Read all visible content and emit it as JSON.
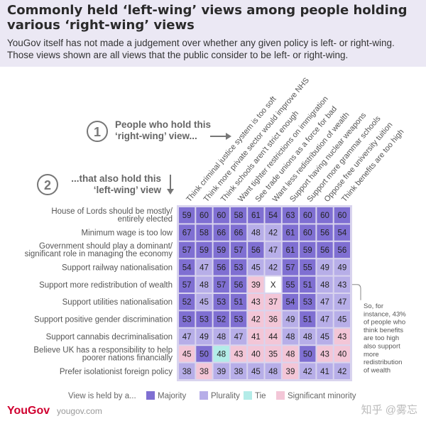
{
  "header": {
    "title": "Commonly held ‘left-wing’ views among people holding various ‘right-wing’ views",
    "subtitle": "YouGov itself has not made a judgement over whether any given policy is left- or right-wing. Those views shown are all views that the public consider to be left- or right-wing."
  },
  "chart_data": {
    "type": "heatmap",
    "step1_number": "1",
    "step1_lines": [
      "People who hold this",
      "‘right-wing’ view..."
    ],
    "step2_number": "2",
    "step2_lines": [
      "...that also hold this",
      "‘left-wing’ view"
    ],
    "columns": [
      "Think criminal justice system is too soft",
      "Think more private sector would improve NHS",
      "Think schools aren't strict enough",
      "Want tighter restrictions on immigration",
      "See trade unions as a force for bad",
      "Want less redistribution of wealth",
      "Support having nuclear weapons",
      "Support more grammar schools",
      "Oppose free university tuition",
      "Think benefits are too high"
    ],
    "rows": [
      {
        "label": [
          "House of Lords should be mostly/",
          "entirely elected"
        ],
        "values": [
          "59",
          "60",
          "60",
          "58",
          "61",
          "54",
          "63",
          "60",
          "60",
          "60"
        ],
        "cats": [
          "M",
          "M",
          "M",
          "M",
          "M",
          "M",
          "M",
          "M",
          "M",
          "M"
        ]
      },
      {
        "label": [
          "Minimum wage is too low"
        ],
        "values": [
          "67",
          "58",
          "66",
          "66",
          "48",
          "42",
          "61",
          "60",
          "56",
          "54"
        ],
        "cats": [
          "M",
          "M",
          "M",
          "M",
          "P",
          "P",
          "M",
          "M",
          "M",
          "M"
        ]
      },
      {
        "label": [
          "Government should play a dominant/",
          "significant role in managing the economy"
        ],
        "values": [
          "57",
          "59",
          "59",
          "57",
          "56",
          "47",
          "61",
          "59",
          "56",
          "56"
        ],
        "cats": [
          "M",
          "M",
          "M",
          "M",
          "M",
          "P",
          "M",
          "M",
          "M",
          "M"
        ]
      },
      {
        "label": [
          "Support railway nationalisation"
        ],
        "values": [
          "54",
          "47",
          "56",
          "53",
          "45",
          "42",
          "57",
          "55",
          "49",
          "49"
        ],
        "cats": [
          "M",
          "P",
          "M",
          "M",
          "P",
          "P",
          "M",
          "M",
          "P",
          "P"
        ]
      },
      {
        "label": [
          "Support more redistribution of wealth"
        ],
        "values": [
          "57",
          "48",
          "57",
          "56",
          "39",
          "X",
          "55",
          "51",
          "48",
          "43"
        ],
        "cats": [
          "M",
          "P",
          "M",
          "M",
          "S",
          "X",
          "M",
          "M",
          "P",
          "P"
        ]
      },
      {
        "label": [
          "Support utilities nationalisation"
        ],
        "values": [
          "52",
          "45",
          "53",
          "51",
          "43",
          "37",
          "54",
          "53",
          "47",
          "47"
        ],
        "cats": [
          "M",
          "P",
          "M",
          "M",
          "S",
          "S",
          "M",
          "M",
          "P",
          "P"
        ]
      },
      {
        "label": [
          "Support positive gender discrimination"
        ],
        "values": [
          "53",
          "53",
          "52",
          "53",
          "42",
          "36",
          "49",
          "51",
          "47",
          "45"
        ],
        "cats": [
          "M",
          "M",
          "M",
          "M",
          "S",
          "S",
          "P",
          "M",
          "P",
          "P"
        ]
      },
      {
        "label": [
          "Support cannabis decriminalisation"
        ],
        "values": [
          "47",
          "49",
          "48",
          "47",
          "41",
          "44",
          "48",
          "48",
          "45",
          "43"
        ],
        "cats": [
          "P",
          "P",
          "P",
          "P",
          "S",
          "S",
          "P",
          "P",
          "P",
          "S"
        ]
      },
      {
        "label": [
          "Believe UK has a responsibility to help",
          "poorer nations financially"
        ],
        "values": [
          "45",
          "50",
          "48",
          "43",
          "40",
          "35",
          "48",
          "50",
          "43",
          "40"
        ],
        "cats": [
          "S",
          "M",
          "T",
          "S",
          "S",
          "S",
          "S",
          "M",
          "S",
          "S"
        ]
      },
      {
        "label": [
          "Prefer isolationist foreign policy"
        ],
        "values": [
          "38",
          "38",
          "39",
          "38",
          "45",
          "48",
          "39",
          "42",
          "41",
          "42"
        ],
        "cats": [
          "P",
          "S",
          "P",
          "P",
          "P",
          "P",
          "S",
          "P",
          "P",
          "P"
        ]
      }
    ],
    "legend": {
      "title": "View is held by a...",
      "items": [
        {
          "key": "M",
          "label": "Majority"
        },
        {
          "key": "P",
          "label": "Plurality"
        },
        {
          "key": "T",
          "label": "Tie"
        },
        {
          "key": "S",
          "label": "Significant minority"
        }
      ]
    },
    "colors": {
      "M": "#7f6fd2",
      "P": "#b7aee8",
      "T": "#b3ece8",
      "S": "#f3c6d7",
      "X": "#ffffff"
    },
    "annotation": [
      "So, for",
      "instance, 43%",
      "of people who",
      "think benefits",
      "are too high",
      "also support",
      "more",
      "redistribution",
      "of wealth"
    ]
  },
  "footer": {
    "brand": "YouGov",
    "site": "yougov.com",
    "watermark": "知乎 @雾忘"
  }
}
